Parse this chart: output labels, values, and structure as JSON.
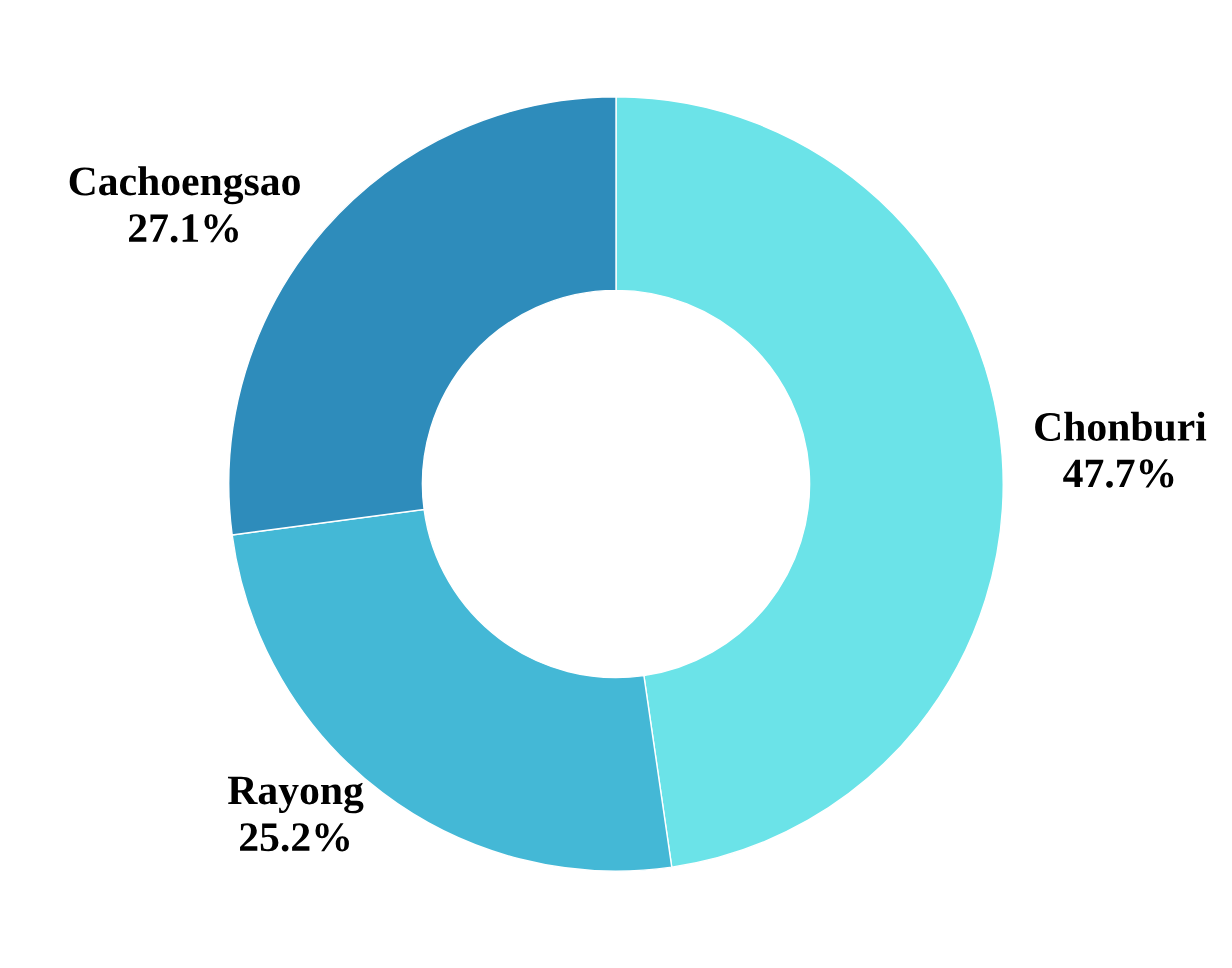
{
  "chart_data": {
    "type": "donut",
    "categories": [
      "Chonburi",
      "Rayong",
      "Cachoengsao"
    ],
    "values": [
      47.7,
      25.2,
      27.1
    ],
    "value_labels": [
      "47.7%",
      "25.2%",
      "27.1%"
    ],
    "colors": [
      "#6be3e8",
      "#44b8d6",
      "#2e8cbb"
    ],
    "legend": false
  }
}
